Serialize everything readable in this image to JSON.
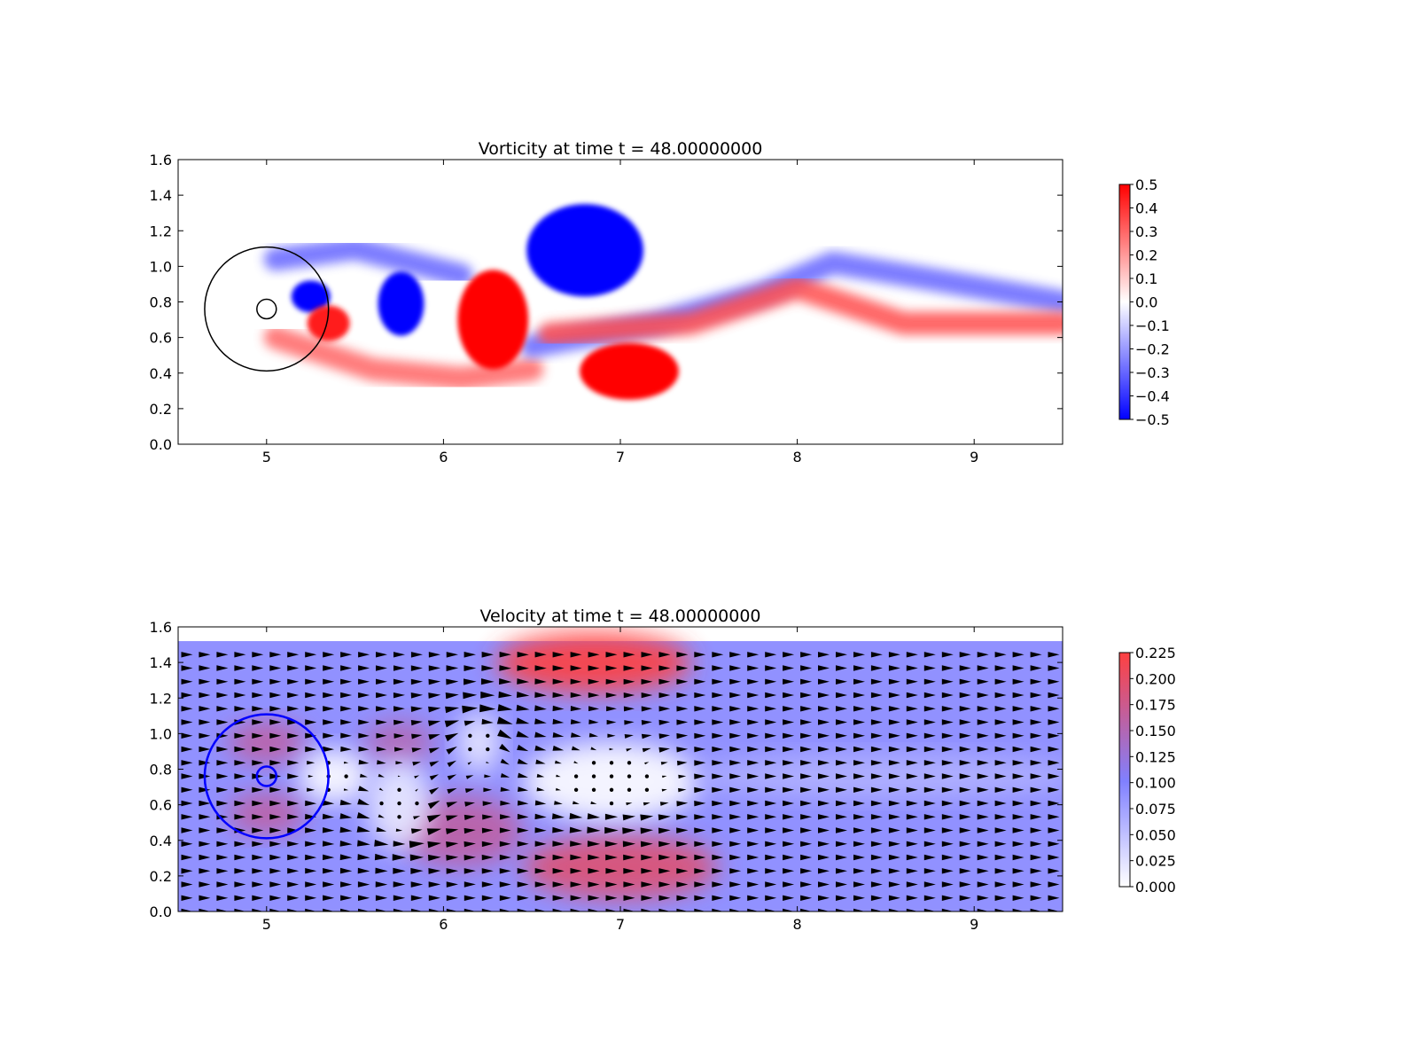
{
  "chart_data": [
    {
      "type": "heatmap",
      "title": "Vorticity at time t =    48.00000000",
      "xlim": [
        4.5,
        9.5
      ],
      "ylim": [
        0.0,
        1.6
      ],
      "x_ticks": [
        "5",
        "6",
        "7",
        "8",
        "9"
      ],
      "y_ticks": [
        "0.0",
        "0.2",
        "0.4",
        "0.6",
        "0.8",
        "1.0",
        "1.2",
        "1.4",
        "1.6"
      ],
      "colorbar": {
        "min": -0.5,
        "max": 0.5,
        "ticks": [
          "0.5",
          "0.4",
          "0.3",
          "0.2",
          "0.1",
          "0.0",
          "−0.1",
          "−0.2",
          "−0.3",
          "−0.4",
          "−0.5"
        ],
        "colors": [
          "#0000ff",
          "#ffffff",
          "#ff0000"
        ]
      },
      "vortices": [
        {
          "x": 5.25,
          "y": 0.83,
          "rx": 0.11,
          "ry": 0.09,
          "value": -0.5
        },
        {
          "x": 5.35,
          "y": 0.68,
          "rx": 0.12,
          "ry": 0.1,
          "value": 0.45
        },
        {
          "x": 5.76,
          "y": 0.79,
          "rx": 0.13,
          "ry": 0.18,
          "value": -0.5
        },
        {
          "x": 6.28,
          "y": 0.7,
          "rx": 0.2,
          "ry": 0.28,
          "value": 0.5
        },
        {
          "x": 6.8,
          "y": 1.09,
          "rx": 0.33,
          "ry": 0.26,
          "value": -0.5
        },
        {
          "x": 7.05,
          "y": 0.41,
          "rx": 0.28,
          "ry": 0.16,
          "value": 0.5
        }
      ],
      "wake": [
        {
          "points": [
            [
              5.05,
              1.04
            ],
            [
              5.5,
              1.1
            ],
            [
              5.9,
              1.0
            ],
            [
              6.1,
              0.95
            ]
          ],
          "value": -0.3
        },
        {
          "points": [
            [
              5.05,
              0.6
            ],
            [
              5.6,
              0.42
            ],
            [
              6.1,
              0.37
            ],
            [
              6.5,
              0.42
            ]
          ],
          "value": 0.3
        },
        {
          "points": [
            [
              6.5,
              0.55
            ],
            [
              7.2,
              0.68
            ],
            [
              7.8,
              0.85
            ],
            [
              8.2,
              1.02
            ],
            [
              8.8,
              0.92
            ],
            [
              9.5,
              0.8
            ]
          ],
          "value": -0.3
        },
        {
          "points": [
            [
              6.6,
              0.62
            ],
            [
              7.4,
              0.68
            ],
            [
              8.0,
              0.88
            ],
            [
              8.6,
              0.68
            ],
            [
              9.5,
              0.68
            ]
          ],
          "value": 0.35
        }
      ],
      "markers": [
        {
          "type": "circle",
          "x": 5.0,
          "y": 0.76,
          "r": 0.35,
          "color": "#000000"
        },
        {
          "type": "circle",
          "x": 5.0,
          "y": 0.76,
          "r": 0.055,
          "color": "#000000"
        }
      ]
    },
    {
      "type": "heatmap",
      "title": "Velocity at time t =    48.00000000",
      "xlim": [
        4.5,
        9.5
      ],
      "ylim": [
        0.0,
        1.6
      ],
      "field_ylim": [
        0.0,
        1.52
      ],
      "x_ticks": [
        "5",
        "6",
        "7",
        "8",
        "9"
      ],
      "y_ticks": [
        "0.0",
        "0.2",
        "0.4",
        "0.6",
        "0.8",
        "1.0",
        "1.2",
        "1.4",
        "1.6"
      ],
      "colorbar": {
        "min": 0.0,
        "max": 0.23,
        "ticks": [
          "0.225",
          "0.200",
          "0.175",
          "0.150",
          "0.125",
          "0.100",
          "0.075",
          "0.050",
          "0.025",
          "0.000"
        ],
        "colors": [
          "#ffffff",
          "#8080ff",
          "#ff4040"
        ]
      },
      "background_speed": 0.1,
      "fast_regions": [
        {
          "x": 6.85,
          "y": 1.4,
          "rx": 0.55,
          "ry": 0.17,
          "value": 0.23
        },
        {
          "x": 7.0,
          "y": 0.25,
          "rx": 0.55,
          "ry": 0.18,
          "value": 0.2
        },
        {
          "x": 6.1,
          "y": 0.45,
          "rx": 0.35,
          "ry": 0.2,
          "value": 0.17
        },
        {
          "x": 5.0,
          "y": 0.95,
          "rx": 0.22,
          "ry": 0.12,
          "value": 0.17
        },
        {
          "x": 5.0,
          "y": 0.55,
          "rx": 0.22,
          "ry": 0.12,
          "value": 0.17
        },
        {
          "x": 5.75,
          "y": 0.95,
          "rx": 0.2,
          "ry": 0.12,
          "value": 0.16
        }
      ],
      "slow_regions": [
        {
          "x": 5.38,
          "y": 0.76,
          "rx": 0.2,
          "ry": 0.15,
          "value": 0.0
        },
        {
          "x": 5.75,
          "y": 0.6,
          "rx": 0.18,
          "ry": 0.25,
          "value": 0.02
        },
        {
          "x": 6.2,
          "y": 0.95,
          "rx": 0.12,
          "ry": 0.17,
          "value": 0.02
        },
        {
          "x": 6.95,
          "y": 0.73,
          "rx": 0.5,
          "ry": 0.22,
          "value": 0.0
        },
        {
          "x": 8.5,
          "y": 0.76,
          "rx": 1.1,
          "ry": 0.12,
          "value": 0.07
        }
      ],
      "vortex_centers": [
        [
          5.78,
          0.6
        ],
        [
          6.22,
          0.95
        ],
        [
          6.95,
          0.75
        ]
      ],
      "markers": [
        {
          "type": "circle",
          "x": 5.0,
          "y": 0.76,
          "r": 0.35,
          "color": "#0000ff"
        },
        {
          "type": "circle",
          "x": 5.0,
          "y": 0.76,
          "r": 0.055,
          "color": "#0000ff"
        }
      ]
    }
  ]
}
